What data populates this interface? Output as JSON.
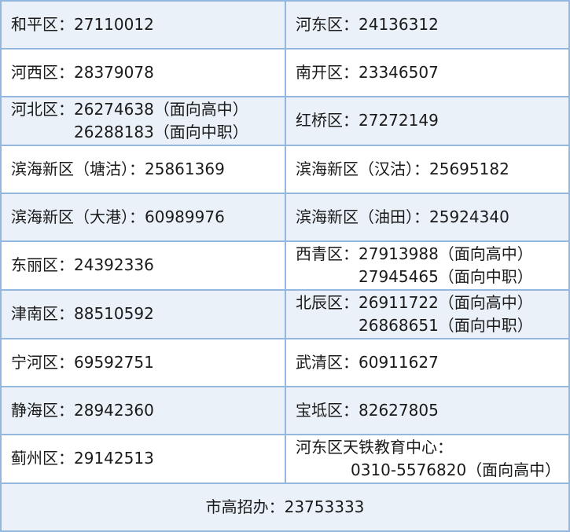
{
  "rows": [
    [
      {
        "label": "和平区：",
        "lines": [
          "27110012"
        ]
      },
      {
        "label": "河东区：",
        "lines": [
          "24136312"
        ]
      }
    ],
    [
      {
        "label": "河西区：",
        "lines": [
          "28379078"
        ]
      },
      {
        "label": "南开区：",
        "lines": [
          "23346507"
        ]
      }
    ],
    [
      {
        "label": "河北区：",
        "lines": [
          "26274638（面向高中）",
          "26288183（面向中职）"
        ]
      },
      {
        "label": "红桥区：",
        "lines": [
          "27272149"
        ]
      }
    ],
    [
      {
        "label": "滨海新区（塘沽）：",
        "lines": [
          "25861369"
        ]
      },
      {
        "label": "滨海新区（汉沽）：",
        "lines": [
          "25695182"
        ]
      }
    ],
    [
      {
        "label": "滨海新区（大港）：",
        "lines": [
          "60989976"
        ]
      },
      {
        "label": "滨海新区（油田）：",
        "lines": [
          "25924340"
        ]
      }
    ],
    [
      {
        "label": "东丽区：",
        "lines": [
          "24392336"
        ]
      },
      {
        "label": "西青区：",
        "lines": [
          "27913988（面向高中）",
          "27945465（面向中职）"
        ]
      }
    ],
    [
      {
        "label": "津南区：",
        "lines": [
          "88510592"
        ]
      },
      {
        "label": "北辰区：",
        "lines": [
          "26911722（面向高中）",
          "26868651（面向中职）"
        ]
      }
    ],
    [
      {
        "label": "宁河区：",
        "lines": [
          "69592751"
        ]
      },
      {
        "label": "武清区：",
        "lines": [
          "60911627"
        ]
      }
    ],
    [
      {
        "label": "静海区：",
        "lines": [
          "28942360"
        ]
      },
      {
        "label": "宝坻区：",
        "lines": [
          "82627805"
        ]
      }
    ],
    [
      {
        "label": "蓟州区：",
        "lines": [
          "29142513"
        ]
      },
      {
        "label": "河东区天铁教育中心：",
        "lines": [
          "0310-5576820（面向高中）"
        ],
        "stacked": true
      }
    ]
  ],
  "footer": {
    "label": "市高招办：",
    "number": "23753333"
  },
  "colors": {
    "row_alt": "#eaf1f9",
    "border": "#93b7de"
  }
}
